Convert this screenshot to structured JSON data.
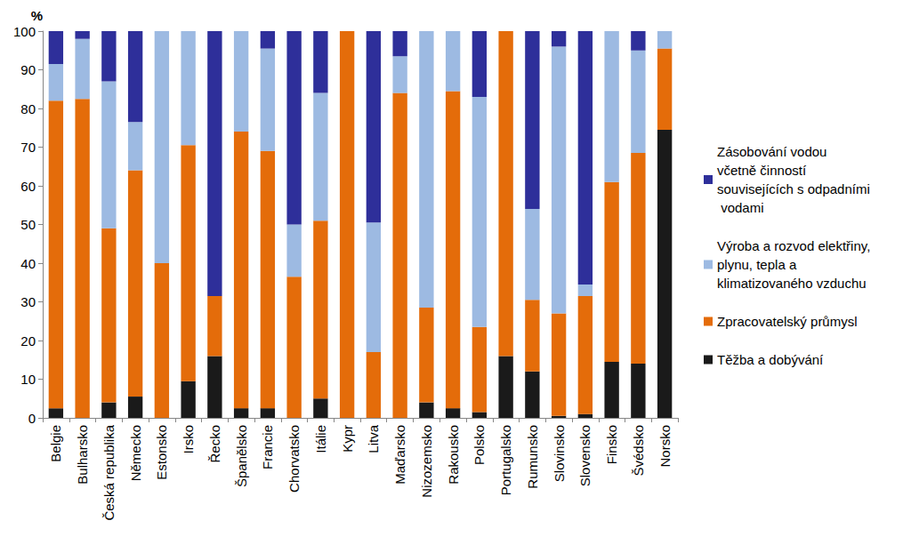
{
  "chart_data": {
    "type": "bar",
    "stacked": true,
    "grid": false,
    "legend": "right",
    "y_label": "%",
    "categories": [
      "Belgie",
      "Bulharsko",
      "Česká republika",
      "Německo",
      "Estonsko",
      "Irsko",
      "Řecko",
      "Španělsko",
      "Francie",
      "Chorvatsko",
      "Itálie",
      "Kypr",
      "Litva",
      "Maďarsko",
      "Nizozemsko",
      "Rakousko",
      "Polsko",
      "Portugalsko",
      "Rumunsko",
      "Slovinsko",
      "Slovensko",
      "Finsko",
      "Švédsko",
      "Norsko"
    ],
    "ylim": [
      0,
      100
    ],
    "yticks": [
      0,
      10,
      20,
      30,
      40,
      50,
      60,
      70,
      80,
      90,
      100
    ],
    "series": [
      {
        "name": "Těžba a dobývání",
        "color": "#1a1a1a",
        "values": [
          2.5,
          0,
          4,
          5.5,
          0,
          9.5,
          16,
          2.5,
          2.5,
          0,
          5,
          0,
          0,
          0,
          4,
          2.5,
          1.5,
          16,
          12,
          0.5,
          1,
          14.5,
          14,
          74.5
        ]
      },
      {
        "name": "Zpracovatelský průmysl",
        "color": "#e46c0a",
        "values": [
          79.5,
          82.5,
          45,
          58.5,
          40,
          61,
          15.5,
          71.5,
          66.5,
          36.5,
          46,
          100,
          17,
          84,
          24.5,
          82,
          22,
          84,
          18.5,
          26.5,
          30.5,
          46.5,
          54.5,
          21
        ]
      },
      {
        "name": "Výroba a rozvod elektřiny, plynu, tepla a klimatizovaného vzduchu",
        "color": "#9dbae2",
        "values": [
          9.5,
          15.5,
          38,
          12.5,
          60,
          29.5,
          0,
          26,
          26.5,
          13.5,
          33,
          0,
          33.5,
          9.5,
          71.5,
          15.5,
          59.5,
          0,
          23.5,
          69,
          3,
          39,
          26.5,
          4.5
        ]
      },
      {
        "name": "Zásobování vodou včetně činností souvisejících s odpadními vodami",
        "color": "#2e2f9a",
        "values": [
          8.5,
          2,
          13,
          23.5,
          0,
          0,
          68.5,
          0,
          4.5,
          50,
          16,
          0,
          49.5,
          6.5,
          0,
          0,
          17,
          0,
          46,
          4,
          65.5,
          0,
          5,
          0
        ]
      }
    ]
  }
}
